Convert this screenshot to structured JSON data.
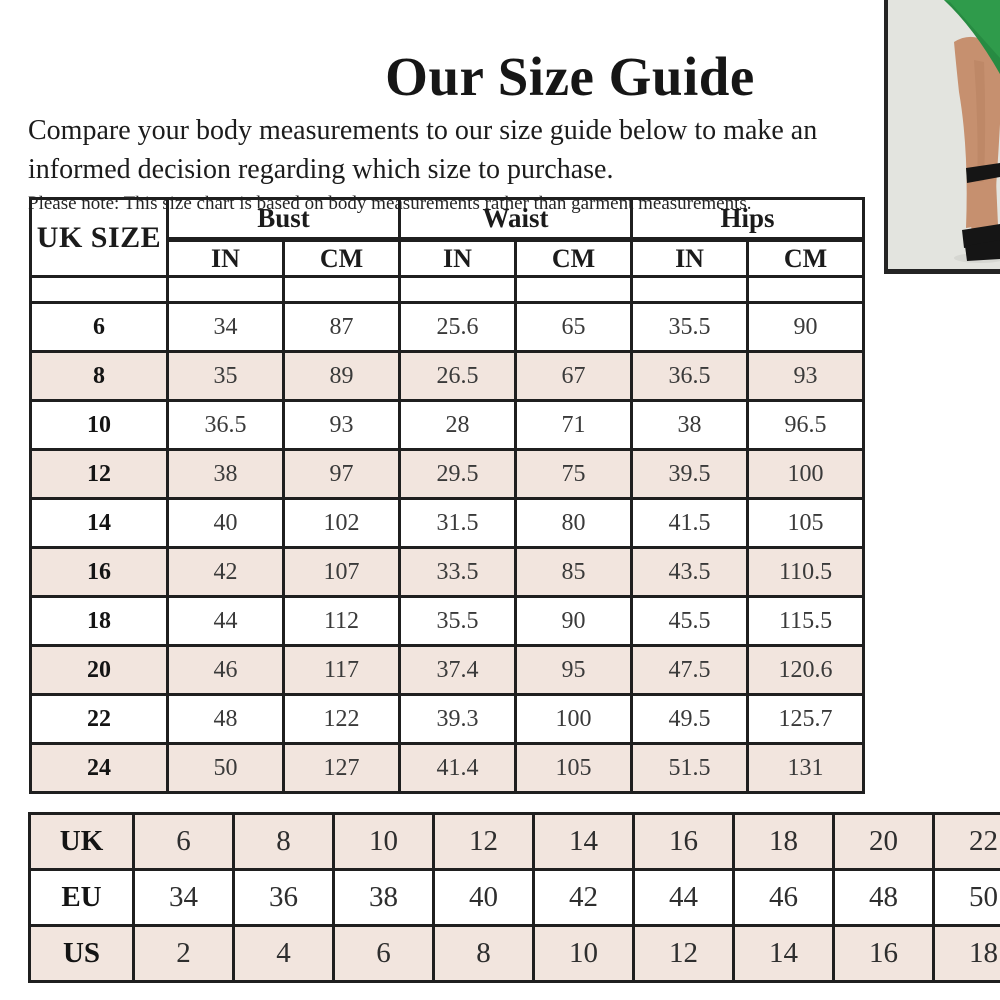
{
  "header": {
    "title": "Our Size Guide",
    "intro": "Compare your body measurements to our size guide below to make an informed decision regarding which size to purchase.",
    "note": "Please note: This size chart is based on body measurements rather than garment measurements."
  },
  "size_table": {
    "corner_header": "UK SIZE",
    "groups": [
      "Bust",
      "Waist",
      "Hips"
    ],
    "sub_headers": [
      "IN",
      "CM",
      "IN",
      "CM",
      "IN",
      "CM"
    ],
    "rows": [
      {
        "uk": "6",
        "values": [
          "34",
          "87",
          "25.6",
          "65",
          "35.5",
          "90"
        ]
      },
      {
        "uk": "8",
        "values": [
          "35",
          "89",
          "26.5",
          "67",
          "36.5",
          "93"
        ]
      },
      {
        "uk": "10",
        "values": [
          "36.5",
          "93",
          "28",
          "71",
          "38",
          "96.5"
        ]
      },
      {
        "uk": "12",
        "values": [
          "38",
          "97",
          "29.5",
          "75",
          "39.5",
          "100"
        ]
      },
      {
        "uk": "14",
        "values": [
          "40",
          "102",
          "31.5",
          "80",
          "41.5",
          "105"
        ]
      },
      {
        "uk": "16",
        "values": [
          "42",
          "107",
          "33.5",
          "85",
          "43.5",
          "110.5"
        ]
      },
      {
        "uk": "18",
        "values": [
          "44",
          "112",
          "35.5",
          "90",
          "45.5",
          "115.5"
        ]
      },
      {
        "uk": "20",
        "values": [
          "46",
          "117",
          "37.4",
          "95",
          "47.5",
          "120.6"
        ]
      },
      {
        "uk": "22",
        "values": [
          "48",
          "122",
          "39.3",
          "100",
          "49.5",
          "125.7"
        ]
      },
      {
        "uk": "24",
        "values": [
          "50",
          "127",
          "41.4",
          "105",
          "51.5",
          "131"
        ]
      }
    ]
  },
  "conversion_table": {
    "rows": [
      {
        "label": "UK",
        "values": [
          "6",
          "8",
          "10",
          "12",
          "14",
          "16",
          "18",
          "20",
          "22"
        ]
      },
      {
        "label": "EU",
        "values": [
          "34",
          "36",
          "38",
          "40",
          "42",
          "44",
          "46",
          "48",
          "50"
        ]
      },
      {
        "label": "US",
        "values": [
          "2",
          "4",
          "6",
          "8",
          "10",
          "12",
          "14",
          "16",
          "18"
        ]
      }
    ]
  },
  "photo": {
    "subject": "model-legs-in-green-dress-with-black-heels",
    "colors": {
      "dress_green": "#2f9b4b",
      "background_gray": "#e3e4df",
      "skin": "#c6906f",
      "shoe_black": "#151515"
    }
  },
  "colors": {
    "row_highlight": "#f2e5de",
    "table_border": "#1f1f1f",
    "text": "#1b1b1b"
  }
}
